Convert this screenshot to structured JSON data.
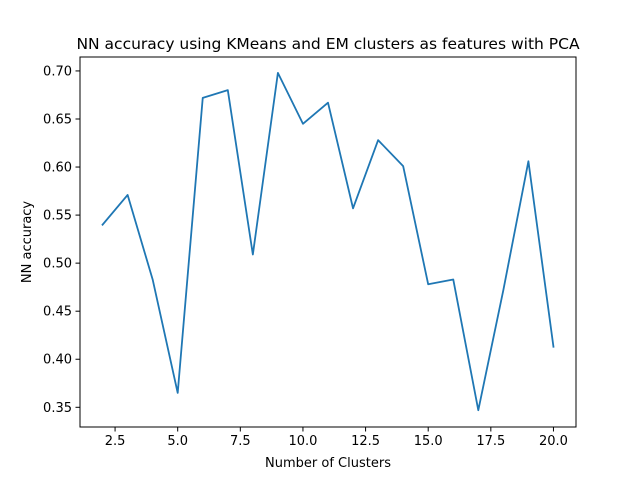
{
  "chart_data": {
    "type": "line",
    "title": "NN accuracy using KMeans and EM clusters as features with PCA",
    "xlabel": "Number of Clusters",
    "ylabel": "NN accuracy",
    "xlim": [
      1.1,
      20.9
    ],
    "ylim": [
      0.3295,
      0.7145
    ],
    "xticks": [
      2.5,
      5.0,
      7.5,
      10.0,
      12.5,
      15.0,
      17.5,
      20.0
    ],
    "xtick_labels": [
      "2.5",
      "5.0",
      "7.5",
      "10.0",
      "12.5",
      "15.0",
      "17.5",
      "20.0"
    ],
    "yticks": [
      0.35,
      0.4,
      0.45,
      0.5,
      0.55,
      0.6,
      0.65,
      0.7
    ],
    "ytick_labels": [
      "0.35",
      "0.40",
      "0.45",
      "0.50",
      "0.55",
      "0.60",
      "0.65",
      "0.70"
    ],
    "grid": false,
    "line_color": "#1f77b4",
    "x": [
      2,
      3,
      4,
      5,
      6,
      7,
      8,
      9,
      10,
      11,
      12,
      13,
      14,
      15,
      16,
      17,
      18,
      19,
      20
    ],
    "y": [
      0.54,
      0.571,
      0.483,
      0.365,
      0.672,
      0.68,
      0.509,
      0.698,
      0.645,
      0.667,
      0.557,
      0.628,
      0.601,
      0.478,
      0.483,
      0.347,
      0.472,
      0.606,
      0.413
    ]
  }
}
